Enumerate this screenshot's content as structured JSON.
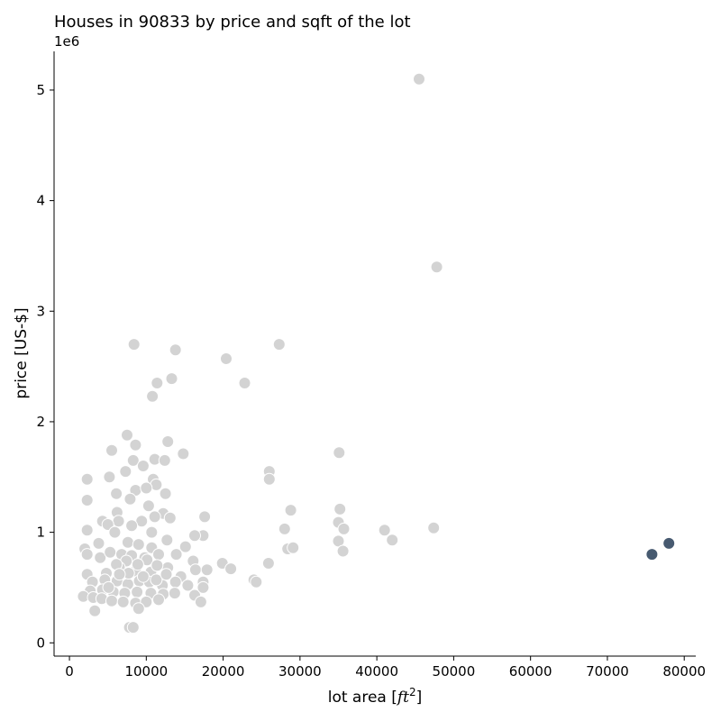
{
  "chart_data": {
    "type": "scatter",
    "title": "Houses in 90833 by price and sqft of the lot",
    "xlabel_prefix": "lot area [",
    "xlabel_math": "ft",
    "xlabel_sup": "2",
    "xlabel_suffix": "]",
    "ylabel": "price [US-$]",
    "y_offset_text": "1e6",
    "xlim": [
      -2000,
      81500
    ],
    "ylim": [
      -0.12,
      5.35
    ],
    "x_ticks": [
      0,
      10000,
      20000,
      30000,
      40000,
      50000,
      60000,
      70000,
      80000
    ],
    "x_tick_labels": [
      "0",
      "10000",
      "20000",
      "30000",
      "40000",
      "50000",
      "60000",
      "70000",
      "80000"
    ],
    "y_ticks": [
      0,
      1,
      2,
      3,
      4,
      5
    ],
    "y_tick_labels": [
      "0",
      "1",
      "2",
      "3",
      "4",
      "5"
    ],
    "grid": false,
    "colors": {
      "other": "#d3d3d3",
      "highlight": "#475a70",
      "edge": "#ffffff"
    },
    "series": [
      {
        "color_key": "other",
        "points": [
          [
            45500,
            5.1
          ],
          [
            47800,
            3.4
          ],
          [
            8400,
            2.7
          ],
          [
            13800,
            2.65
          ],
          [
            27300,
            2.7
          ],
          [
            20400,
            2.57
          ],
          [
            13300,
            2.39
          ],
          [
            11400,
            2.35
          ],
          [
            22800,
            2.35
          ],
          [
            10800,
            2.23
          ],
          [
            7500,
            1.88
          ],
          [
            8600,
            1.79
          ],
          [
            12800,
            1.82
          ],
          [
            14800,
            1.71
          ],
          [
            5500,
            1.74
          ],
          [
            35100,
            1.72
          ],
          [
            8300,
            1.65
          ],
          [
            11100,
            1.66
          ],
          [
            12400,
            1.65
          ],
          [
            9600,
            1.6
          ],
          [
            7300,
            1.55
          ],
          [
            26000,
            1.55
          ],
          [
            26000,
            1.48
          ],
          [
            10900,
            1.48
          ],
          [
            5200,
            1.5
          ],
          [
            2300,
            1.48
          ],
          [
            11300,
            1.43
          ],
          [
            8600,
            1.38
          ],
          [
            10000,
            1.4
          ],
          [
            12500,
            1.35
          ],
          [
            6100,
            1.35
          ],
          [
            7900,
            1.3
          ],
          [
            2300,
            1.29
          ],
          [
            10300,
            1.24
          ],
          [
            28800,
            1.2
          ],
          [
            35200,
            1.21
          ],
          [
            6200,
            1.18
          ],
          [
            12200,
            1.17
          ],
          [
            11100,
            1.14
          ],
          [
            13100,
            1.13
          ],
          [
            17600,
            1.14
          ],
          [
            4300,
            1.1
          ],
          [
            6400,
            1.1
          ],
          [
            9400,
            1.1
          ],
          [
            5000,
            1.07
          ],
          [
            8100,
            1.06
          ],
          [
            35000,
            1.09
          ],
          [
            28000,
            1.03
          ],
          [
            35700,
            1.03
          ],
          [
            41000,
            1.02
          ],
          [
            47400,
            1.04
          ],
          [
            2300,
            1.02
          ],
          [
            10700,
            1.0
          ],
          [
            5900,
            1.0
          ],
          [
            17400,
            0.97
          ],
          [
            16300,
            0.97
          ],
          [
            12700,
            0.93
          ],
          [
            35000,
            0.92
          ],
          [
            42000,
            0.93
          ],
          [
            3800,
            0.9
          ],
          [
            7600,
            0.91
          ],
          [
            9000,
            0.89
          ],
          [
            10700,
            0.86
          ],
          [
            15100,
            0.87
          ],
          [
            28400,
            0.85
          ],
          [
            29100,
            0.86
          ],
          [
            35600,
            0.83
          ],
          [
            2000,
            0.85
          ],
          [
            2300,
            0.8
          ],
          [
            4000,
            0.77
          ],
          [
            5300,
            0.82
          ],
          [
            6800,
            0.8
          ],
          [
            8100,
            0.79
          ],
          [
            9800,
            0.77
          ],
          [
            11600,
            0.8
          ],
          [
            13900,
            0.8
          ],
          [
            7400,
            0.74
          ],
          [
            10100,
            0.75
          ],
          [
            16100,
            0.74
          ],
          [
            19900,
            0.72
          ],
          [
            25900,
            0.72
          ],
          [
            2300,
            0.62
          ],
          [
            4800,
            0.63
          ],
          [
            6500,
            0.68
          ],
          [
            8600,
            0.65
          ],
          [
            10600,
            0.64
          ],
          [
            12800,
            0.68
          ],
          [
            14500,
            0.6
          ],
          [
            16400,
            0.66
          ],
          [
            17900,
            0.66
          ],
          [
            21000,
            0.67
          ],
          [
            3000,
            0.55
          ],
          [
            4600,
            0.57
          ],
          [
            6200,
            0.56
          ],
          [
            7600,
            0.53
          ],
          [
            9100,
            0.56
          ],
          [
            10400,
            0.55
          ],
          [
            12100,
            0.52
          ],
          [
            13800,
            0.55
          ],
          [
            15400,
            0.52
          ],
          [
            17400,
            0.55
          ],
          [
            24000,
            0.57
          ],
          [
            24300,
            0.55
          ],
          [
            2700,
            0.47
          ],
          [
            4300,
            0.48
          ],
          [
            5700,
            0.46
          ],
          [
            7200,
            0.45
          ],
          [
            8800,
            0.46
          ],
          [
            10600,
            0.45
          ],
          [
            12200,
            0.44
          ],
          [
            13700,
            0.45
          ],
          [
            16300,
            0.43
          ],
          [
            17400,
            0.5
          ],
          [
            1800,
            0.42
          ],
          [
            3100,
            0.41
          ],
          [
            4200,
            0.4
          ],
          [
            5500,
            0.38
          ],
          [
            7000,
            0.37
          ],
          [
            8600,
            0.36
          ],
          [
            10000,
            0.37
          ],
          [
            11600,
            0.39
          ],
          [
            17100,
            0.37
          ],
          [
            3300,
            0.29
          ],
          [
            9000,
            0.31
          ],
          [
            7800,
            0.14
          ],
          [
            8300,
            0.14
          ],
          [
            7700,
            0.63
          ],
          [
            9600,
            0.6
          ],
          [
            11300,
            0.57
          ],
          [
            6100,
            0.71
          ],
          [
            8900,
            0.71
          ],
          [
            11400,
            0.7
          ],
          [
            12600,
            0.62
          ],
          [
            5100,
            0.5
          ],
          [
            6500,
            0.62
          ]
        ]
      },
      {
        "color_key": "highlight",
        "points": [
          [
            75800,
            0.8
          ],
          [
            78000,
            0.9
          ]
        ]
      }
    ]
  }
}
